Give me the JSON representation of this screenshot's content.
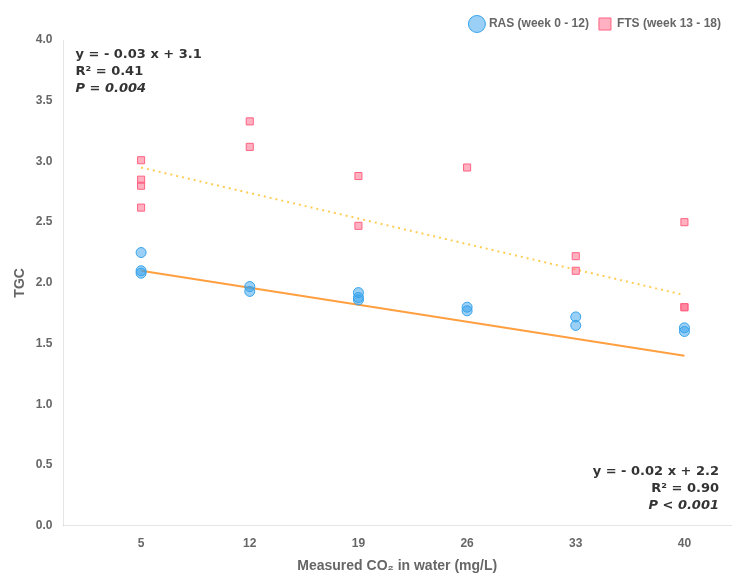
{
  "chart_data": {
    "type": "scatter",
    "xlabel": "Measured CO₂ in water (mg/L)",
    "ylabel": "TGC",
    "xlim": [
      0,
      43
    ],
    "ylim": [
      0.0,
      4.0
    ],
    "xticks": [
      5,
      12,
      19,
      26,
      33,
      40
    ],
    "yticks": [
      {
        "value": 0.0,
        "label": "0.0"
      },
      {
        "value": 0.5,
        "label": "0.5"
      },
      {
        "value": 1.0,
        "label": "1.0"
      },
      {
        "value": 1.5,
        "label": "1.5"
      },
      {
        "value": 2.0,
        "label": "2.0"
      },
      {
        "value": 2.5,
        "label": "2.5"
      },
      {
        "value": 3.0,
        "label": "3.0"
      },
      {
        "value": 3.5,
        "label": "3.5"
      },
      {
        "value": 4.0,
        "label": "4.0"
      }
    ],
    "grid": false,
    "legend": "upper right",
    "series": [
      {
        "name": "RAS (week 0 - 12)",
        "type": "scatter",
        "marker": "circle",
        "x": [
          5,
          5,
          5,
          12,
          12,
          19,
          19,
          19,
          26,
          26,
          33,
          33,
          40,
          40
        ],
        "values": [
          2.25,
          2.1,
          2.08,
          1.97,
          1.93,
          1.92,
          1.88,
          1.86,
          1.8,
          1.77,
          1.72,
          1.65,
          1.63,
          1.6
        ]
      },
      {
        "name": "FTS (week 13 - 18)",
        "type": "scatter",
        "marker": "square",
        "x": [
          5,
          5,
          5,
          5,
          12,
          12,
          19,
          19,
          26,
          33,
          33,
          40,
          40,
          40
        ],
        "values": [
          3.01,
          2.85,
          2.8,
          2.62,
          3.33,
          3.12,
          2.47,
          2.88,
          2.95,
          2.1,
          2.22,
          1.8,
          1.8,
          2.5
        ]
      },
      {
        "type": "line",
        "line_style": "solid",
        "x": [
          5,
          40
        ],
        "values": [
          2.1,
          1.4
        ]
      },
      {
        "type": "line",
        "line_style": "dotted",
        "x": [
          5,
          40
        ],
        "values": [
          2.95,
          1.9
        ]
      }
    ],
    "annotations": [
      [
        "y = - 0.03 x + 3.1",
        "R² = 0.41",
        "P = 0.004"
      ],
      [
        "y = - 0.02 x + 2.2",
        "R² = 0.90",
        "P < 0.001"
      ]
    ]
  }
}
